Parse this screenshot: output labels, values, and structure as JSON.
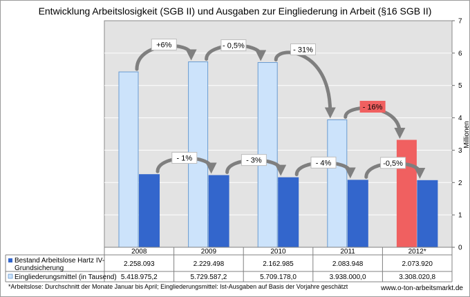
{
  "chart_data": {
    "type": "bar",
    "title": "Entwicklung Arbeitslosigkeit (SGB II) und Ausgaben zur Eingliederung in Arbeit (§16 SGB II)",
    "categories": [
      "2008",
      "2009",
      "2010",
      "2011",
      "2012*"
    ],
    "series": [
      {
        "name": "Eingliederungsmittel (in Tausend)",
        "values": [
          5.4189752,
          5.7295872,
          5.709178,
          3.938,
          3.3080208
        ],
        "value_labels": [
          "5.418.975,2",
          "5.729.587,2",
          "5.709.178,0",
          "3.938.000,0",
          "3.308.020,8"
        ],
        "color": "#cce3fb",
        "border": "#6a9bd0",
        "highlight_color": "#f06060"
      },
      {
        "name": "Bestand Arbeitslose Hartz IV-Grundsicherung",
        "name_lines": [
          "Bestand Arbeitslose Hartz IV-",
          "Grundsicherung"
        ],
        "values": [
          2.258093,
          2.229498,
          2.162985,
          2.083948,
          2.07392
        ],
        "value_labels": [
          "2.258.093",
          "2.229.498",
          "2.162.985",
          "2.083.948",
          "2.073.920"
        ],
        "color": "#3366cc"
      }
    ],
    "ylim": [
      0,
      7
    ],
    "yticks": [
      "0",
      "1",
      "2",
      "3",
      "4",
      "5",
      "6",
      "7"
    ],
    "yaxis_unit": "Millionen",
    "annotations_light": [
      "+6%",
      "- 0,5%",
      "- 31%",
      "- 16%"
    ],
    "annotations_dark": [
      "- 1%",
      "- 3%",
      "- 4%",
      "-0,5%"
    ],
    "highlight_annotation_color": "#f06060",
    "gridlines": true,
    "legend_position": "table-left"
  },
  "footnote": "*Arbeitslose: Durchschnitt der Monate Januar bis April; Eingliederungsmittel: Ist-Ausgaben auf Basis der Vorjahre geschätzt",
  "source_site": "www.o-ton-arbeitsmarkt.de"
}
